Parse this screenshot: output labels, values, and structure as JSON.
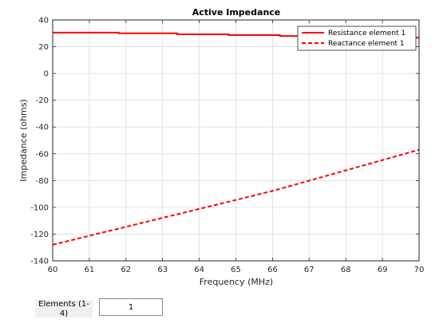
{
  "chart_data": {
    "type": "line",
    "title": "Active Impedance",
    "xlabel": "Frequency (MHz)",
    "ylabel": "Impedance (ohms)",
    "xlim": [
      60,
      70
    ],
    "ylim": [
      -140,
      40
    ],
    "xticks": [
      60,
      61,
      62,
      63,
      64,
      65,
      66,
      67,
      68,
      69,
      70
    ],
    "yticks": [
      -140,
      -120,
      -100,
      -80,
      -60,
      -40,
      -20,
      0,
      20,
      40
    ],
    "grid": true,
    "legend_position": "top-right",
    "series": [
      {
        "name": "Resistance element 1",
        "color": "#ff0000",
        "style": "solid",
        "x": [
          60,
          61.8,
          61.8,
          63.4,
          63.4,
          64.8,
          64.8,
          66.2,
          66.2,
          67.6,
          67.6,
          69.0,
          69.0,
          70
        ],
        "y": [
          30.5,
          30.5,
          30.0,
          30.0,
          29.3,
          29.3,
          28.7,
          28.7,
          28.0,
          28.0,
          27.3,
          27.3,
          26.7,
          26.7
        ]
      },
      {
        "name": "Reactance element 1",
        "color": "#ff0000",
        "style": "dashed",
        "x": [
          60,
          61,
          62,
          63,
          64,
          65,
          66,
          67,
          68,
          69,
          70
        ],
        "y": [
          -128,
          -121.3,
          -114.6,
          -107.9,
          -101.2,
          -94.5,
          -87.8,
          -80.1,
          -72.4,
          -64.7,
          -57
        ]
      }
    ]
  },
  "controls": {
    "elements_label": "Elements (1-4)",
    "elements_value": "1"
  }
}
